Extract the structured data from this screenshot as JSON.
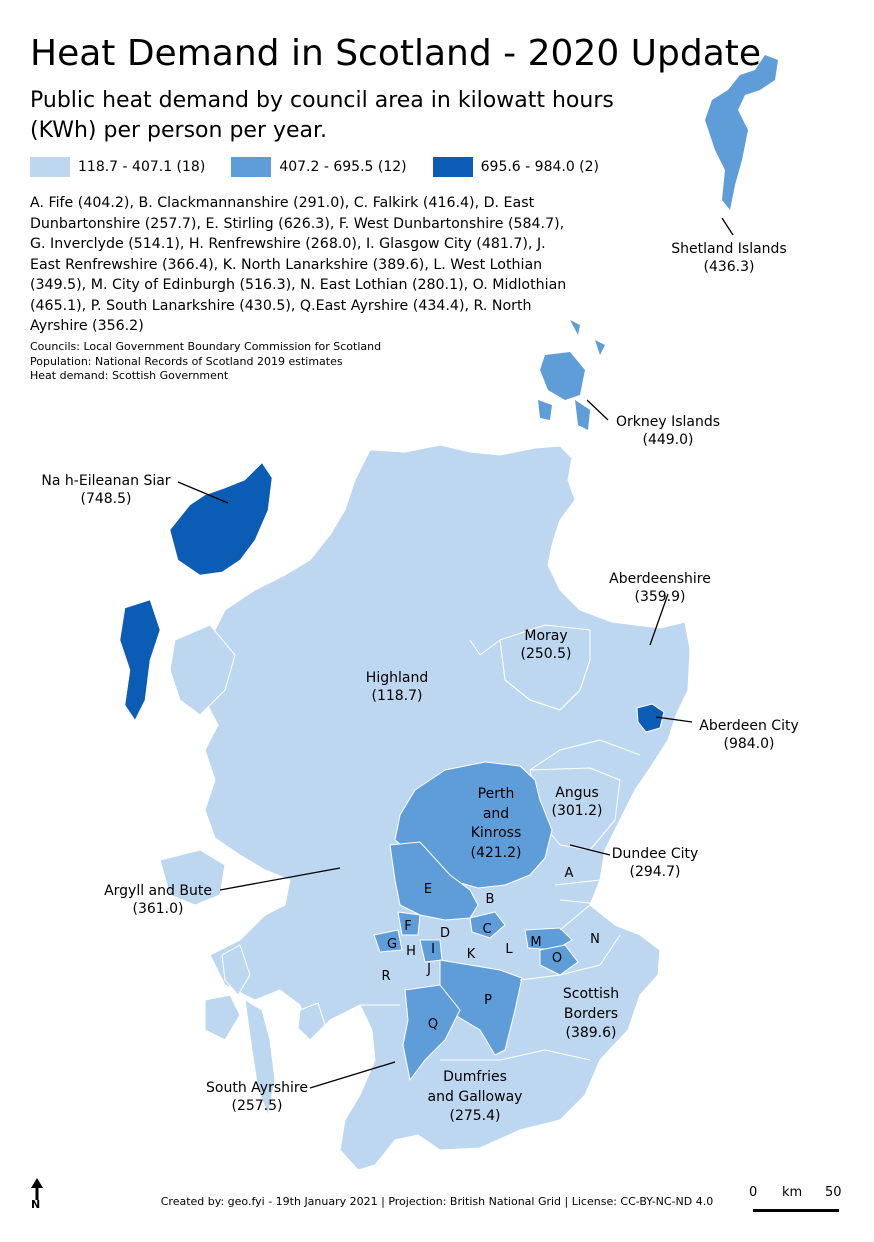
{
  "title": "Heat Demand in Scotland - 2020 Update",
  "subtitle": "Public heat demand by council area in kilowatt hours (KWh) per person per year.",
  "legend": [
    {
      "label": "118.7 - 407.1 (18)",
      "color": "#bcd7ef"
    },
    {
      "label": "407.2 - 695.5 (12)",
      "color": "#5f9dd9"
    },
    {
      "label": "695.6 - 984.0 (2)",
      "color": "#0b5cb5"
    }
  ],
  "key_text": "A. Fife (404.2), B. Clackmannanshire (291.0), C. Falkirk (416.4), D. East Dunbartonshire (257.7), E. Stirling (626.3), F. West Dunbartonshire (584.7), G. Inverclyde (514.1), H. Renfrewshire (268.0), I. Glasgow City (481.7), J. East Renfrewshire (366.4), K. North Lanarkshire (389.6), L. West Lothian (349.5), M. City of Edinburgh (516.3), N. East Lothian (280.1), O. Midlothian (465.1), P. South Lanarkshire (430.5), Q.East Ayrshire (434.4), R. North Ayrshire (356.2)",
  "sources": [
    "Councils: Local Government Boundary Commission for Scotland",
    "Population: National Records of Scotland 2019 estimates",
    "Heat demand: Scottish Government"
  ],
  "labels": {
    "shetland": {
      "name": "Shetland Islands",
      "value": "(436.3)"
    },
    "orkney": {
      "name": "Orkney Islands",
      "value": "(449.0)"
    },
    "eilean": {
      "name": "Na h-Eileanan Siar",
      "value": "(748.5)"
    },
    "aberdeenshire": {
      "name": "Aberdeenshire",
      "value": "(359.9)"
    },
    "moray": {
      "name": "Moray",
      "value": "(250.5)"
    },
    "highland": {
      "name": "Highland",
      "value": "(118.7)"
    },
    "aberdeen": {
      "name": "Aberdeen City",
      "value": "(984.0)"
    },
    "perth": {
      "name1": "Perth",
      "name2": "and",
      "name3": "Kinross",
      "value": "(421.2)"
    },
    "angus": {
      "name": "Angus",
      "value": "(301.2)"
    },
    "dundee": {
      "name": "Dundee City",
      "value": "(294.7)"
    },
    "argyll": {
      "name": "Argyll and Bute",
      "value": "(361.0)"
    },
    "borders": {
      "name1": "Scottish",
      "name2": "Borders",
      "value": "(389.6)"
    },
    "s_ayrshire": {
      "name": "South Ayrshire",
      "value": "(257.5)"
    },
    "dumfries": {
      "name1": "Dumfries",
      "name2": "and Galloway",
      "value": "(275.4)"
    }
  },
  "letters": [
    "A",
    "B",
    "C",
    "D",
    "E",
    "F",
    "G",
    "H",
    "I",
    "J",
    "K",
    "L",
    "M",
    "N",
    "O",
    "P",
    "Q",
    "R"
  ],
  "footer": "Created by: geo.fyi - 19th January 2021 | Projection: British National Grid | License: CC-BY-NC-ND 4.0",
  "north_label": "N",
  "scale": {
    "left": "0",
    "unit": "km",
    "right": "50"
  }
}
